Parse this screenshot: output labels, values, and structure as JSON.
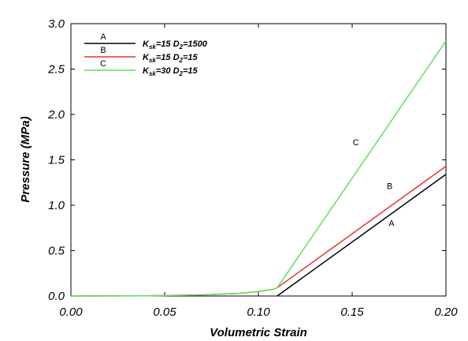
{
  "chart_data": {
    "type": "line",
    "xlabel": "Volumetric Strain",
    "ylabel": "Pressure (MPa)",
    "xlim": [
      0.0,
      0.2
    ],
    "ylim": [
      0.0,
      3.0
    ],
    "x_ticks": [
      "0.00",
      "0.05",
      "0.10",
      "0.15",
      "0.20"
    ],
    "y_ticks": [
      "0.0",
      "0.5",
      "1.0",
      "1.5",
      "2.0",
      "2.5",
      "3.0"
    ],
    "grid": false,
    "legend_position": "top-left",
    "series": [
      {
        "code": "A",
        "label": {
          "k": "K",
          "k_sub": "sk",
          "k_val": "=15 ",
          "d": "D",
          "d_sub": "2",
          "d_val": "=1500"
        },
        "color": "#000000",
        "points": [
          [
            0.11,
            0.0
          ],
          [
            0.2,
            1.34
          ]
        ]
      },
      {
        "code": "B",
        "label": {
          "k": "K",
          "k_sub": "sk",
          "k_val": "=15 ",
          "d": "D",
          "d_sub": "2",
          "d_val": "=15"
        },
        "color": "#e8372f",
        "points": [
          [
            0.0,
            0.0
          ],
          [
            0.04,
            0.003
          ],
          [
            0.07,
            0.012
          ],
          [
            0.09,
            0.03
          ],
          [
            0.1,
            0.05
          ],
          [
            0.108,
            0.075
          ],
          [
            0.11,
            0.09
          ],
          [
            0.2,
            1.43
          ]
        ]
      },
      {
        "code": "C",
        "label": {
          "k": "K",
          "k_sub": "sk",
          "k_val": "=30 ",
          "d": "D",
          "d_sub": "2",
          "d_val": "=15"
        },
        "color": "#5fe05f",
        "points": [
          [
            0.0,
            0.0
          ],
          [
            0.04,
            0.003
          ],
          [
            0.07,
            0.012
          ],
          [
            0.09,
            0.03
          ],
          [
            0.1,
            0.05
          ],
          [
            0.108,
            0.075
          ],
          [
            0.11,
            0.09
          ],
          [
            0.2,
            2.81
          ]
        ]
      }
    ],
    "annotations": [
      {
        "text": "A",
        "x": 0.171,
        "y": 0.77
      },
      {
        "text": "B",
        "x": 0.17,
        "y": 1.18
      },
      {
        "text": "C",
        "x": 0.152,
        "y": 1.66
      }
    ]
  }
}
